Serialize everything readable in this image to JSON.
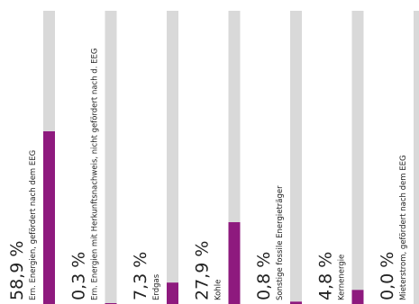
{
  "chart_data": {
    "type": "bar",
    "orientation": "vertical",
    "title": "",
    "xlabel": "",
    "ylabel": "",
    "ylim": [
      0,
      100
    ],
    "grid": false,
    "legend": "none",
    "categories": [
      "Ern. Energien, gefördert nach dem EEG",
      "Ern. Energien mit Herkunftsnachweis, nicht gefördert nach d. EEG",
      "Erdgas",
      "Kohle",
      "Sonstige fossile Energieträger",
      "Kernenergie",
      "Mieterstrom, gefördert nach dem EEG"
    ],
    "values": [
      58.9,
      0.3,
      7.3,
      27.9,
      0.8,
      4.8,
      0.0
    ],
    "value_labels": [
      "58,9 %",
      "0,3 %",
      "7,3 %",
      "27,9 %",
      "0,8 %",
      "4,8 %",
      "0,0 %"
    ],
    "colors": {
      "bar": "#8e1a7e",
      "track": "#d9d9d9",
      "text": "#222222"
    }
  }
}
